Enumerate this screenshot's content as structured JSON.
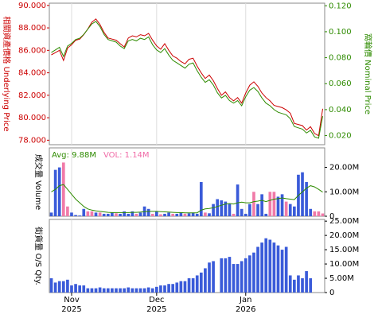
{
  "chart_data": [
    {
      "type": "line",
      "y_title": "相關資產價格 Underlying Price",
      "y2_title": "窩輪價 Nominal Price",
      "categories": [
        null,
        null,
        null,
        null,
        null,
        "Nov\n2025",
        null,
        null,
        null,
        null,
        null,
        null,
        null,
        null,
        null,
        null,
        null,
        null,
        null,
        null,
        null,
        null,
        null,
        null,
        null,
        null,
        "Dec\n2025",
        null,
        null,
        null,
        null,
        null,
        null,
        null,
        null,
        null,
        null,
        null,
        null,
        null,
        null,
        null,
        null,
        null,
        null,
        null,
        null,
        null,
        "Jan\n2026",
        null,
        null,
        null,
        null,
        null,
        null,
        null,
        null,
        null,
        null,
        null,
        null,
        null,
        null,
        null,
        null,
        null,
        null,
        null
      ],
      "ylim": [
        77.6,
        90.2
      ],
      "yticks": [
        {
          "value": 78,
          "label": "78.000"
        },
        {
          "value": 80,
          "label": "80.000"
        },
        {
          "value": 82,
          "label": "82.000"
        },
        {
          "value": 84,
          "label": "84.000"
        },
        {
          "value": 86,
          "label": "86.000"
        },
        {
          "value": 88,
          "label": "88.000"
        },
        {
          "value": 90,
          "label": "90.000"
        }
      ],
      "y2lim": [
        0.013,
        0.122
      ],
      "y2ticks": [
        {
          "value": 0.02,
          "label": "0.020"
        },
        {
          "value": 0.04,
          "label": "0.040"
        },
        {
          "value": 0.06,
          "label": "0.060"
        },
        {
          "value": 0.08,
          "label": "0.080"
        },
        {
          "value": 0.1,
          "label": "0.100"
        },
        {
          "value": 0.12,
          "label": "0.120"
        }
      ],
      "series": [
        {
          "color": "#cc0000",
          "values": [
            85.6,
            85.8,
            86.0,
            85.1,
            86.2,
            86.5,
            86.9,
            87.0,
            87.4,
            87.9,
            88.5,
            88.8,
            88.3,
            87.6,
            87.1,
            87.0,
            86.9,
            86.6,
            86.3,
            87.1,
            87.3,
            87.2,
            87.4,
            87.3,
            87.5,
            86.9,
            86.4,
            86.1,
            86.6,
            86.0,
            85.5,
            85.3,
            85.0,
            84.8,
            85.2,
            85.3,
            84.6,
            84.0,
            83.5,
            83.8,
            83.3,
            82.6,
            82.0,
            82.3,
            81.8,
            81.5,
            81.8,
            81.3,
            82.2,
            82.9,
            83.2,
            82.8,
            82.2,
            81.8,
            81.5,
            81.1,
            81.0,
            80.9,
            80.7,
            80.4,
            79.5,
            79.4,
            79.3,
            78.9,
            79.2,
            78.6,
            78.4,
            80.8
          ]
        },
        {
          "color": "#2e8b00",
          "axis": "y2",
          "values": [
            0.084,
            0.086,
            0.088,
            0.081,
            0.089,
            0.091,
            0.094,
            0.095,
            0.098,
            0.102,
            0.106,
            0.108,
            0.104,
            0.098,
            0.094,
            0.093,
            0.092,
            0.089,
            0.087,
            0.093,
            0.094,
            0.093,
            0.095,
            0.094,
            0.096,
            0.09,
            0.086,
            0.084,
            0.087,
            0.082,
            0.078,
            0.076,
            0.074,
            0.072,
            0.075,
            0.076,
            0.07,
            0.065,
            0.061,
            0.063,
            0.059,
            0.053,
            0.049,
            0.051,
            0.047,
            0.045,
            0.047,
            0.043,
            0.05,
            0.055,
            0.057,
            0.054,
            0.049,
            0.045,
            0.043,
            0.04,
            0.038,
            0.037,
            0.036,
            0.033,
            0.027,
            0.026,
            0.025,
            0.022,
            0.024,
            0.019,
            0.018,
            0.035
          ]
        }
      ]
    },
    {
      "type": "bar",
      "y_title": "成交量 Volume",
      "avg_text": "Avg: 9.88M",
      "vol_text": "VOL: 1.14M",
      "avg_color": "#2e8b00",
      "vol_color": "#f06aa6",
      "ylim": [
        0,
        28000000
      ],
      "yticks": [
        {
          "value": 0,
          "label": "0"
        },
        {
          "value": 10000000,
          "label": "10.00M"
        },
        {
          "value": 20000000,
          "label": "20.00M"
        }
      ],
      "colors": [
        "#3a5bd9",
        "#3a5bd9",
        "#3a5bd9",
        "#f07aa8",
        "#f07aa8",
        "#3a5bd9",
        "#3a5bd9",
        "#3a5bd9",
        "#3a5bd9",
        "#f07aa8",
        "#f07aa8",
        "#3a5bd9",
        "#f07aa8",
        "#3a5bd9",
        "#3a5bd9",
        "#3a5bd9",
        "#f07aa8",
        "#3a5bd9",
        "#3a5bd9",
        "#3a5bd9",
        "#3a5bd9",
        "#f07aa8",
        "#3a5bd9",
        "#3a5bd9",
        "#3a5bd9",
        "#f07aa8",
        "#3a5bd9",
        "#f07aa8",
        "#3a5bd9",
        "#3a5bd9",
        "#f07aa8",
        "#3a5bd9",
        "#3a5bd9",
        "#f07aa8",
        "#3a5bd9",
        "#3a5bd9",
        "#3a5bd9",
        "#3a5bd9",
        "#f07aa8",
        "#3a5bd9",
        "#3a5bd9",
        "#3a5bd9",
        "#3a5bd9",
        "#3a5bd9",
        "#3a5bd9",
        "#f07aa8",
        "#3a5bd9",
        "#3a5bd9",
        "#3a5bd9",
        "#3a5bd9",
        "#f07aa8",
        "#3a5bd9",
        "#3a5bd9",
        "#3a5bd9",
        "#f07aa8",
        "#f07aa8",
        "#3a5bd9",
        "#3a5bd9",
        "#f07aa8",
        "#3a5bd9",
        "#3a5bd9",
        "#3a5bd9",
        "#3a5bd9",
        "#3a5bd9",
        "#3a5bd9",
        "#f07aa8",
        "#f07aa8",
        "#f07aa8"
      ],
      "values": [
        1500000,
        19000000,
        20000000,
        22000000,
        4000000,
        1500000,
        500000,
        300000,
        3000000,
        2000000,
        2000000,
        1500000,
        1500000,
        1000000,
        1000000,
        1500000,
        1200000,
        1000000,
        2000000,
        1000000,
        2000000,
        1000000,
        1500000,
        4000000,
        3000000,
        1000000,
        2000000,
        800000,
        1000000,
        1500000,
        1000000,
        1000000,
        1500000,
        1000000,
        1200000,
        1500000,
        1000000,
        14000000,
        1500000,
        1200000,
        5000000,
        7000000,
        6500000,
        6000000,
        5000000,
        1000000,
        13000000,
        3000000,
        1000000,
        5000000,
        10000000,
        5000000,
        9000000,
        1000000,
        10000000,
        10000000,
        8000000,
        9000000,
        6000000,
        5000000,
        4000000,
        17000000,
        18000000,
        14000000,
        3000000,
        2000000,
        2000000,
        1140000
      ],
      "avg": [
        10000000,
        11000000,
        12500000,
        13000000,
        11000000,
        9000000,
        7000000,
        5500000,
        4000000,
        3000000,
        2500000,
        2200000,
        2000000,
        1800000,
        1600000,
        1500000,
        1500000,
        1500000,
        1500000,
        1500000,
        1600000,
        1600000,
        1700000,
        1900000,
        2000000,
        2000000,
        2000000,
        1900000,
        1800000,
        1700000,
        1600000,
        1500000,
        1500000,
        1400000,
        1400000,
        1400000,
        1400000,
        2500000,
        3000000,
        3200000,
        3500000,
        4000000,
        4500000,
        5000000,
        5200000,
        5000000,
        5500000,
        5800000,
        5500000,
        5500000,
        6000000,
        6200000,
        6500000,
        6000000,
        6500000,
        7000000,
        7200000,
        7500000,
        7200000,
        7000000,
        6800000,
        8500000,
        10000000,
        11500000,
        12500000,
        12000000,
        11000000,
        9880000
      ]
    },
    {
      "type": "bar",
      "y_title": "街貨量 O/S Qty.",
      "color": "#3a5bd9",
      "ylim": [
        0,
        25600000
      ],
      "yticks": [
        {
          "value": 0,
          "label": "0"
        },
        {
          "value": 5000000,
          "label": "5.00M"
        },
        {
          "value": 10000000,
          "label": "10.00M"
        },
        {
          "value": 15000000,
          "label": "15.00M"
        },
        {
          "value": 20000000,
          "label": "20.00M"
        },
        {
          "value": 25000000,
          "label": "25.00M"
        }
      ],
      "values": [
        5000000,
        3500000,
        4000000,
        4000000,
        4500000,
        2500000,
        3000000,
        2500000,
        2500000,
        1500000,
        1500000,
        1500000,
        1800000,
        1500000,
        1500000,
        1500000,
        1500000,
        1500000,
        1500000,
        1800000,
        1500000,
        1500000,
        1500000,
        1500000,
        1800000,
        1500000,
        2000000,
        2500000,
        2500000,
        3000000,
        3000000,
        3500000,
        4000000,
        4000000,
        5000000,
        5000000,
        6000000,
        7000000,
        8500000,
        10500000,
        11000000,
        0,
        12000000,
        12000000,
        12500000,
        10000000,
        10000000,
        11000000,
        12000000,
        13000000,
        14000000,
        16000000,
        17500000,
        19000000,
        18500000,
        17500000,
        16500000,
        15000000,
        16000000,
        6000000,
        4500000,
        6000000,
        5000000,
        7500000,
        5000000,
        0,
        0,
        0
      ]
    }
  ]
}
